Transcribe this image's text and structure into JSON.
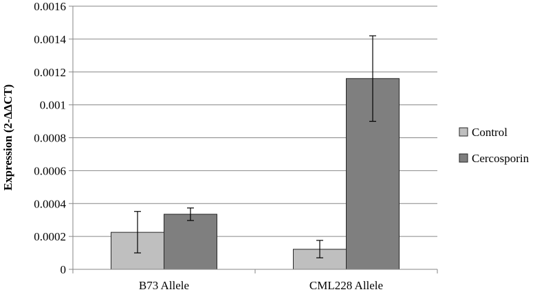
{
  "chart_data": {
    "type": "bar",
    "title": "",
    "xlabel": "",
    "ylabel": "Expression (2-ΔΔCT)",
    "ylim": [
      0,
      0.0016
    ],
    "yticks": [
      "0",
      "0.0002",
      "0.0004",
      "0.0006",
      "0.0008",
      "0.001",
      "0.0012",
      "0.0014",
      "0.0016"
    ],
    "ytick_values": [
      0,
      0.0002,
      0.0004,
      0.0006,
      0.0008,
      0.001,
      0.0012,
      0.0014,
      0.0016
    ],
    "categories": [
      "B73 Allele",
      "CML228 Allele"
    ],
    "series": [
      {
        "name": "Control",
        "values": [
          0.000225,
          0.000122
        ],
        "error_low": [
          0.0001,
          7e-05
        ],
        "error_high": [
          0.000352,
          0.000176
        ],
        "color": "#bfbfbf"
      },
      {
        "name": "Cercosporin",
        "values": [
          0.000335,
          0.00116
        ],
        "error_low": [
          0.000297,
          0.0009
        ],
        "error_high": [
          0.000373,
          0.00142
        ],
        "color": "#7f7f7f"
      }
    ],
    "grid": true,
    "legend_position": "right"
  }
}
